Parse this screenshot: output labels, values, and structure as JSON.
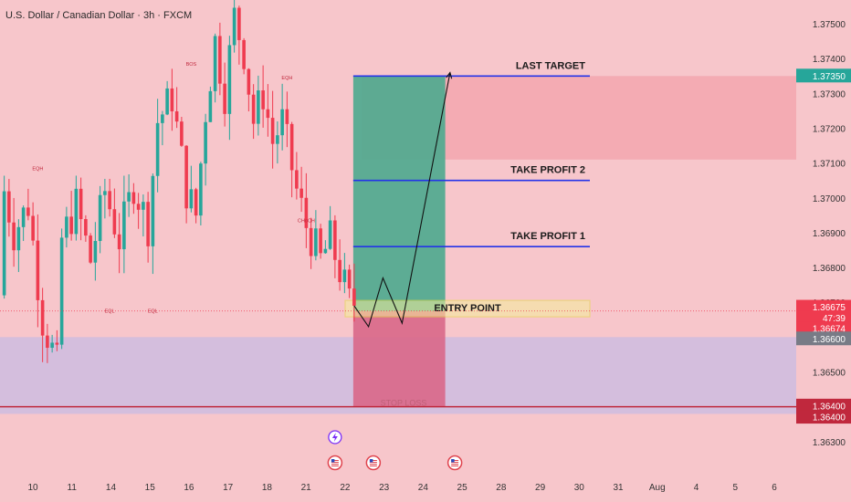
{
  "header": {
    "title": "U.S. Dollar / Canadian Dollar · 3h · FXCM"
  },
  "colors": {
    "background": "#f7c6cb",
    "up": "#26a69a",
    "down": "#ef3b4f",
    "target_line": "#2434e8",
    "profit_zone": "#4fa98f",
    "loss_zone": "#d9698a",
    "support_zone": "#d2bedd",
    "resistance_zone": "#f3a7b0",
    "entry_box": "#f4ee9a",
    "stop_line": "#c0283d"
  },
  "chart_data": {
    "type": "candlestick",
    "symbol": "U.S. Dollar / Canadian Dollar",
    "interval": "3h",
    "ylim": [
      1.3625,
      1.3755
    ],
    "y_ticks": [
      1.375,
      1.374,
      1.373,
      1.372,
      1.371,
      1.37,
      1.369,
      1.368,
      1.367,
      1.365,
      1.363
    ],
    "y_tick_labels": [
      "1.37500",
      "1.37400",
      "1.37300",
      "1.37200",
      "1.37100",
      "1.37000",
      "1.36900",
      "1.36800",
      "1.36700",
      "1.36500",
      "1.36300"
    ],
    "x_ticks": [
      {
        "label": "10",
        "bar": 2
      },
      {
        "label": "11",
        "bar": 10
      },
      {
        "label": "14",
        "bar": 18
      },
      {
        "label": "15",
        "bar": 26
      },
      {
        "label": "16",
        "bar": 34
      },
      {
        "label": "17",
        "bar": 42
      },
      {
        "label": "18",
        "bar": 50
      },
      {
        "label": "21",
        "bar": 58
      },
      {
        "label": "22",
        "bar": 66
      },
      {
        "label": "23",
        "bar": 74
      },
      {
        "label": "24",
        "bar": 82
      },
      {
        "label": "25",
        "bar": 90
      },
      {
        "label": "28",
        "bar": 98
      },
      {
        "label": "29",
        "bar": 106
      },
      {
        "label": "30",
        "bar": 114
      },
      {
        "label": "31",
        "bar": 122
      },
      {
        "label": "Aug",
        "bar": 130
      },
      {
        "label": "4",
        "bar": 138
      },
      {
        "label": "5",
        "bar": 146
      },
      {
        "label": "6",
        "bar": 154
      }
    ],
    "ohlc_waypoints": [
      {
        "bar": 0,
        "price": 1.3672
      },
      {
        "bar": 1,
        "price": 1.3702
      },
      {
        "bar": 3,
        "price": 1.369
      },
      {
        "bar": 6,
        "price": 1.3698
      },
      {
        "bar": 9,
        "price": 1.3665
      },
      {
        "bar": 12,
        "price": 1.3652
      },
      {
        "bar": 13,
        "price": 1.3688
      },
      {
        "bar": 16,
        "price": 1.3698
      },
      {
        "bar": 19,
        "price": 1.3682
      },
      {
        "bar": 22,
        "price": 1.3702
      },
      {
        "bar": 25,
        "price": 1.3688
      },
      {
        "bar": 28,
        "price": 1.3704
      },
      {
        "bar": 31,
        "price": 1.3692
      },
      {
        "bar": 33,
        "price": 1.3722
      },
      {
        "bar": 36,
        "price": 1.3729
      },
      {
        "bar": 39,
        "price": 1.3702
      },
      {
        "bar": 41,
        "price": 1.3695
      },
      {
        "bar": 43,
        "price": 1.3725
      },
      {
        "bar": 45,
        "price": 1.3745
      },
      {
        "bar": 47,
        "price": 1.373
      },
      {
        "bar": 49,
        "price": 1.3752
      },
      {
        "bar": 51,
        "price": 1.3742
      },
      {
        "bar": 53,
        "price": 1.3722
      },
      {
        "bar": 55,
        "price": 1.373
      },
      {
        "bar": 57,
        "price": 1.3716
      },
      {
        "bar": 59,
        "price": 1.3722
      },
      {
        "bar": 62,
        "price": 1.3702
      },
      {
        "bar": 64,
        "price": 1.3692
      },
      {
        "bar": 67,
        "price": 1.3682
      },
      {
        "bar": 69,
        "price": 1.3688
      },
      {
        "bar": 71,
        "price": 1.3679
      },
      {
        "bar": 73,
        "price": 1.367
      }
    ],
    "position": {
      "start_bar": 73,
      "end_bar": 92,
      "entry": 1.36674,
      "stop": 1.364,
      "targets": [
        {
          "label": "TAKE PROFIT 1",
          "price": 1.3686
        },
        {
          "label": "TAKE PROFIT 2",
          "price": 1.3705
        },
        {
          "label": "LAST TARGET",
          "price": 1.3735
        }
      ],
      "entry_label": "ENTRY POINT",
      "stop_label": "STOP LOSS"
    },
    "projection": [
      {
        "bar": 73,
        "price": 1.3669
      },
      {
        "bar": 76,
        "price": 1.3663
      },
      {
        "bar": 79,
        "price": 1.3677
      },
      {
        "bar": 83,
        "price": 1.3664
      },
      {
        "bar": 93,
        "price": 1.3736
      }
    ],
    "zones": [
      {
        "name": "supply",
        "from": 1.3711,
        "to": 1.3735,
        "start_bar": 0,
        "end_bar": 160,
        "start_from_bar": 75
      },
      {
        "name": "demand",
        "from": 1.3639,
        "to": 1.366,
        "start_bar": 0,
        "end_bar": 160
      }
    ],
    "annotations": [
      {
        "text": "EQH",
        "bar": 7,
        "price": 1.3708
      },
      {
        "text": "BOS",
        "bar": 39,
        "price": 1.3738
      },
      {
        "text": "EQH",
        "bar": 59,
        "price": 1.3734
      },
      {
        "text": "CHoCH",
        "bar": 63,
        "price": 1.3693
      },
      {
        "text": "EQL",
        "bar": 22,
        "price": 1.3667
      },
      {
        "text": "EQL",
        "bar": 31,
        "price": 1.3667
      }
    ],
    "price_labels": [
      {
        "text": "1.37350",
        "price": 1.3735,
        "bg": "#26a69a",
        "fg": "#ffffff"
      },
      {
        "text": "1.36675",
        "price": 1.36686,
        "bg": "#ef3b4f",
        "fg": "#ffffff"
      },
      {
        "text": "47:39",
        "price": 1.36655,
        "bg": "#ef3b4f",
        "fg": "#ffffff"
      },
      {
        "text": "1.36674",
        "price": 1.36624,
        "bg": "#ef3b4f",
        "fg": "#ffffff"
      },
      {
        "text": "1.36600",
        "price": 1.36595,
        "bg": "#787b86",
        "fg": "#ffffff"
      },
      {
        "text": "1.36400",
        "price": 1.36402,
        "bg": "#c0283d",
        "fg": "#ffffff"
      },
      {
        "text": "1.36400",
        "price": 1.3637,
        "bg": "#c0283d",
        "fg": "#ffffff"
      }
    ],
    "events": [
      {
        "icon": "lightning-icon",
        "bar": 69,
        "row": 0
      },
      {
        "icon": "us-flag-icon",
        "bar": 69,
        "row": 1
      },
      {
        "icon": "us-flag-icon",
        "bar": 77,
        "row": 1
      },
      {
        "icon": "us-flag-icon",
        "bar": 94,
        "row": 1
      }
    ],
    "current_price": 1.36675
  }
}
